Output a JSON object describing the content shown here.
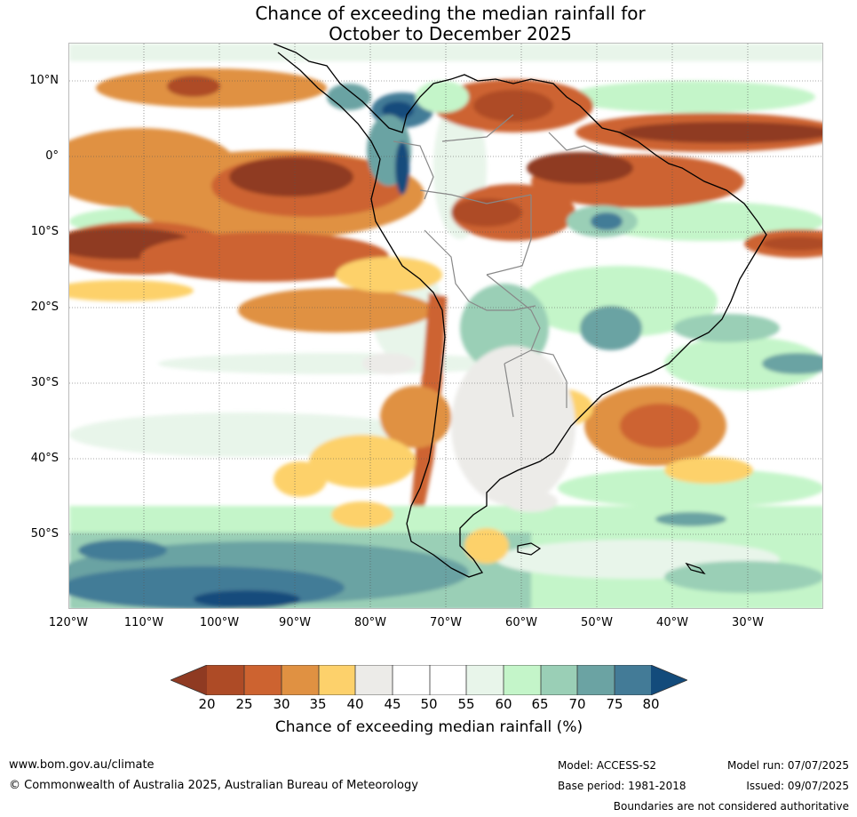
{
  "title": {
    "line1": "Chance of exceeding the median rainfall for",
    "line2": "October to December 2025"
  },
  "map": {
    "lat_labels": [
      "10°N",
      "0°",
      "10°S",
      "20°S",
      "30°S",
      "40°S",
      "50°S"
    ],
    "lon_labels": [
      "120°W",
      "110°W",
      "100°W",
      "90°W",
      "80°W",
      "70°W",
      "60°W",
      "50°W",
      "40°W",
      "30°W"
    ],
    "ocean_color": "#ffffff",
    "coastline_color": "#000000",
    "border_color": "#888888"
  },
  "colorbar": {
    "ticks": [
      "20",
      "25",
      "30",
      "35",
      "40",
      "45",
      "50",
      "55",
      "60",
      "65",
      "70",
      "75",
      "80"
    ],
    "label": "Chance of exceeding median rainfall (%)",
    "colors": {
      "below20": "#8f3a22",
      "c20_25": "#ae4b26",
      "c25_30": "#cd6330",
      "c30_35": "#e09142",
      "c35_40": "#fdd16b",
      "c40_45": "#ecebe8",
      "c45_50": "#ffffff",
      "c50_55": "#ffffff",
      "c55_60": "#e8f5ea",
      "c60_65": "#c4f5c9",
      "c65_70": "#9acfb6",
      "c70_75": "#6ba3a3",
      "c75_80": "#437b97",
      "above80": "#134b7b"
    }
  },
  "footer": {
    "website": "www.bom.gov.au/climate",
    "copyright": "© Commonwealth of Australia 2025, Australian Bureau of Meteorology",
    "model": "Model: ACCESS-S2",
    "base_period": "Base period: 1981-2018",
    "model_run": "Model run: 07/07/2025",
    "issued": "Issued: 09/07/2025",
    "disclaimer": "Boundaries are not considered authoritative"
  }
}
